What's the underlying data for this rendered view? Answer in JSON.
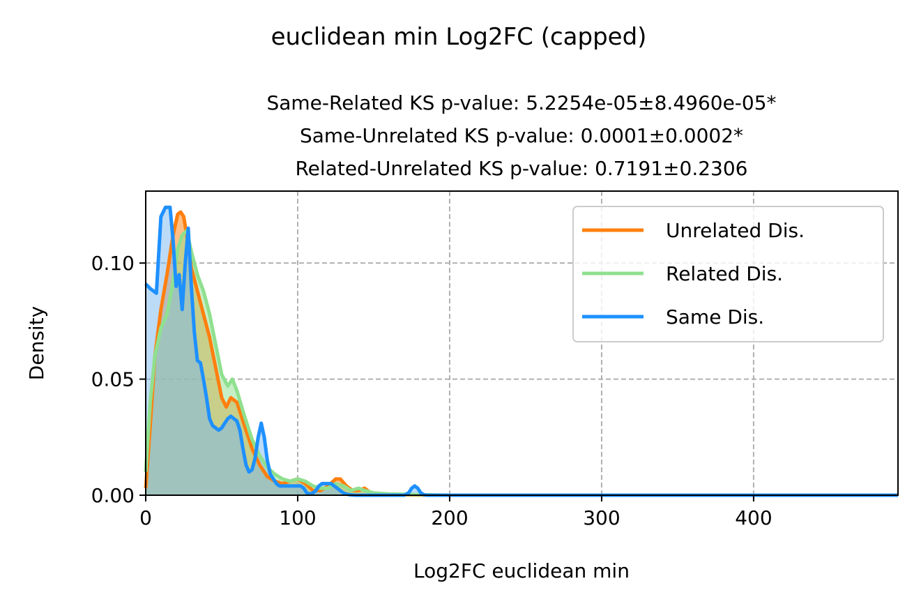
{
  "figure": {
    "suptitle": "euclidean min Log2FC (capped)"
  },
  "chart_data": {
    "type": "area",
    "title_lines": [
      "Same-Related KS p-value: 5.2254e-05±8.4960e-05*",
      "Same-Unrelated KS p-value: 0.0001±0.0002*",
      "Related-Unrelated KS p-value: 0.7191±0.2306"
    ],
    "xlabel": "Log2FC euclidean min",
    "ylabel": "Density",
    "xlim": [
      0,
      495
    ],
    "ylim": [
      0,
      0.131
    ],
    "xticks": [
      0,
      100,
      200,
      300,
      400
    ],
    "xtick_labels": [
      "0",
      "100",
      "200",
      "300",
      "400"
    ],
    "yticks": [
      0,
      0.05,
      0.1
    ],
    "ytick_labels": [
      "0.00",
      "0.05",
      "0.10"
    ],
    "grid": true,
    "legend_position": "top-right",
    "series": [
      {
        "name": "Unrelated Dis.",
        "color": "#ff7f0e",
        "fill": "#ff7f0e",
        "x": [
          0,
          3,
          6,
          10,
          14,
          18,
          21,
          23,
          25,
          27,
          30,
          34,
          38,
          42,
          46,
          50,
          53,
          56,
          60,
          65,
          70,
          75,
          80,
          85,
          90,
          95,
          100,
          105,
          110,
          115,
          120,
          125,
          128,
          132,
          136,
          140,
          144,
          148,
          155,
          165,
          180,
          200,
          250,
          300,
          400,
          495
        ],
        "values": [
          0.003,
          0.03,
          0.06,
          0.08,
          0.095,
          0.112,
          0.121,
          0.122,
          0.12,
          0.112,
          0.098,
          0.088,
          0.078,
          0.068,
          0.055,
          0.042,
          0.038,
          0.042,
          0.04,
          0.03,
          0.02,
          0.013,
          0.008,
          0.006,
          0.005,
          0.006,
          0.007,
          0.005,
          0.002,
          0.002,
          0.004,
          0.007,
          0.007,
          0.004,
          0.002,
          0.002,
          0.003,
          0.001,
          0.0005,
          0.0002,
          0.0001,
          0,
          0,
          0,
          0,
          0
        ]
      },
      {
        "name": "Related Dis.",
        "color": "#8fe08f",
        "fill": "#8fe08f",
        "x": [
          0,
          3,
          6,
          10,
          14,
          18,
          21,
          24,
          27,
          30,
          34,
          38,
          42,
          46,
          50,
          54,
          57,
          60,
          65,
          70,
          75,
          80,
          85,
          90,
          95,
          100,
          105,
          110,
          115,
          120,
          125,
          130,
          135,
          140,
          144,
          150,
          160,
          180,
          200,
          250,
          300,
          400,
          495
        ],
        "values": [
          0.01,
          0.04,
          0.06,
          0.072,
          0.078,
          0.092,
          0.106,
          0.112,
          0.114,
          0.105,
          0.095,
          0.088,
          0.078,
          0.065,
          0.052,
          0.047,
          0.05,
          0.045,
          0.034,
          0.024,
          0.017,
          0.012,
          0.009,
          0.007,
          0.006,
          0.007,
          0.006,
          0.004,
          0.003,
          0.003,
          0.005,
          0.004,
          0.002,
          0.003,
          0.002,
          0.001,
          0.0005,
          0.0002,
          0,
          0,
          0,
          0,
          0
        ]
      },
      {
        "name": "Same Dis.",
        "color": "#1e90ff",
        "fill": "#7ab8ef",
        "x": [
          0,
          3,
          7,
          10,
          13,
          16,
          18,
          20,
          22,
          24,
          26,
          28,
          30,
          32,
          34,
          36,
          38,
          40,
          42,
          44,
          46,
          48,
          50,
          52,
          54,
          56,
          58,
          60,
          62,
          64,
          66,
          68,
          70,
          72,
          74,
          76,
          78,
          80,
          82,
          84,
          86,
          88,
          90,
          92,
          94,
          96,
          98,
          100,
          102,
          104,
          106,
          108,
          110,
          112,
          114,
          116,
          118,
          120,
          122,
          124,
          126,
          128,
          130,
          132,
          134,
          136,
          138,
          140,
          145,
          150,
          155,
          160,
          165,
          170,
          173,
          175,
          177,
          179,
          181,
          183,
          185,
          190,
          200,
          250,
          300,
          400,
          495
        ],
        "values": [
          0.091,
          0.089,
          0.087,
          0.12,
          0.124,
          0.124,
          0.11,
          0.09,
          0.095,
          0.08,
          0.1,
          0.115,
          0.09,
          0.07,
          0.058,
          0.057,
          0.05,
          0.042,
          0.033,
          0.03,
          0.029,
          0.028,
          0.029,
          0.031,
          0.033,
          0.034,
          0.033,
          0.032,
          0.028,
          0.02,
          0.013,
          0.01,
          0.011,
          0.016,
          0.025,
          0.031,
          0.025,
          0.015,
          0.009,
          0.007,
          0.005,
          0.004,
          0.004,
          0.004,
          0.004,
          0.004,
          0.004,
          0.004,
          0.004,
          0.003,
          0.001,
          0.0005,
          0.001,
          0.002,
          0.004,
          0.005,
          0.005,
          0.005,
          0.005,
          0.004,
          0.003,
          0.002,
          0.001,
          0.0005,
          0.0002,
          0.0001,
          0,
          0,
          0,
          0,
          0,
          0,
          0,
          0,
          0.001,
          0.003,
          0.004,
          0.003,
          0.001,
          0.0002,
          0,
          0,
          0,
          0,
          0,
          0,
          0
        ]
      }
    ]
  }
}
